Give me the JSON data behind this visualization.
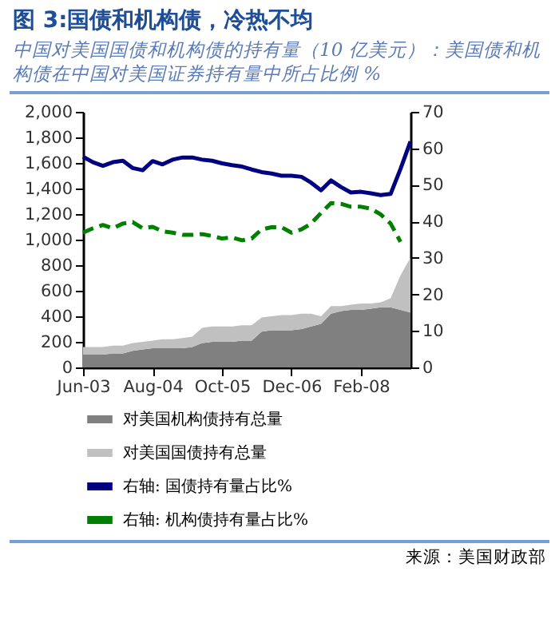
{
  "chart_data": {
    "type": "area",
    "stacked": true,
    "title": "图 3:国债和机构债，冷热不均",
    "subtitle": "中国对美国国债和机构债的持有量（10 亿美元）：美国债和机构债在中国对美国证券持有量中所占比例 %",
    "annotations": [
      "来源：美国财政部"
    ],
    "x": [
      "2003-06",
      "2003-08",
      "2003-10",
      "2003-12",
      "2004-02",
      "2004-04",
      "2004-06",
      "2004-08",
      "2004-10",
      "2004-12",
      "2005-02",
      "2005-04",
      "2005-06",
      "2005-08",
      "2005-10",
      "2005-12",
      "2006-02",
      "2006-04",
      "2006-06",
      "2006-08",
      "2006-10",
      "2006-12",
      "2007-02",
      "2007-04",
      "2007-06",
      "2007-08",
      "2007-10",
      "2007-12",
      "2008-02",
      "2008-04",
      "2008-06",
      "2008-08",
      "2008-10",
      "2008-12"
    ],
    "xlim": [
      "2003-06",
      "2008-12"
    ],
    "xticks": [
      {
        "value": "2003-06",
        "label": "Jun-03"
      },
      {
        "value": "2004-08",
        "label": "Aug-04"
      },
      {
        "value": "2005-10",
        "label": "Oct-05"
      },
      {
        "value": "2006-12",
        "label": "Dec-06"
      },
      {
        "value": "2008-02",
        "label": "Feb-08"
      }
    ],
    "ylim": [
      0,
      2000
    ],
    "yticks": [
      0,
      200,
      400,
      600,
      800,
      {
        "value": 1000,
        "label": "1,000"
      },
      {
        "value": 1200,
        "label": "1,200"
      },
      {
        "value": 1400,
        "label": "1,400"
      },
      {
        "value": 1600,
        "label": "1,600"
      },
      {
        "value": 1800,
        "label": "1,800"
      },
      {
        "value": 2000,
        "label": "2,000"
      }
    ],
    "y2lim": [
      0,
      70
    ],
    "y2ticks": [
      0,
      10,
      20,
      30,
      40,
      50,
      60,
      70
    ],
    "legend": "bottom",
    "grid": false,
    "series": [
      {
        "name": "对美国机构债持有总量",
        "color": "#808080",
        "values": [
          100,
          100,
          100,
          110,
          110,
          130,
          140,
          150,
          150,
          150,
          150,
          160,
          190,
          200,
          200,
          200,
          210,
          210,
          280,
          290,
          290,
          290,
          300,
          320,
          340,
          420,
          440,
          450,
          450,
          460,
          470,
          470,
          450,
          430
        ]
      },
      {
        "name": "对美国国债持有总量",
        "color": "#c0c0c0",
        "values": [
          60,
          60,
          60,
          60,
          60,
          60,
          60,
          60,
          70,
          70,
          80,
          80,
          120,
          120,
          120,
          120,
          120,
          120,
          110,
          110,
          120,
          120,
          120,
          100,
          60,
          60,
          40,
          40,
          50,
          40,
          40,
          70,
          270,
          430
        ]
      },
      {
        "name": "右轴: 国债持有量占比%",
        "type": "line",
        "axis": "y2",
        "line_style": "solid",
        "color": "#000080",
        "values": [
          57.7,
          56.2,
          55.2,
          56.2,
          56.6,
          54.6,
          54.0,
          56.5,
          55.6,
          56.9,
          57.5,
          57.5,
          56.9,
          56.6,
          55.9,
          55.4,
          55.0,
          54.2,
          53.5,
          53.1,
          52.5,
          52.5,
          52.2,
          50.6,
          48.5,
          51.2,
          49.4,
          47.9,
          48.1,
          47.7,
          47.2,
          47.5,
          54.4,
          61.9
        ]
      },
      {
        "name": "右轴: 机构债持有量占比%",
        "type": "line",
        "axis": "y2",
        "line_style": "dashed",
        "color": "#008000",
        "values": [
          36.9,
          38.1,
          39.0,
          38.1,
          39.4,
          39.8,
          38.1,
          38.5,
          37.3,
          36.9,
          36.3,
          36.3,
          36.5,
          36.0,
          35.3,
          35.6,
          34.8,
          35.3,
          37.8,
          38.4,
          38.4,
          36.9,
          37.8,
          39.4,
          42.3,
          45.0,
          44.8,
          44.0,
          44.0,
          43.5,
          41.9,
          39.4,
          34.4,
          null
        ]
      }
    ]
  }
}
